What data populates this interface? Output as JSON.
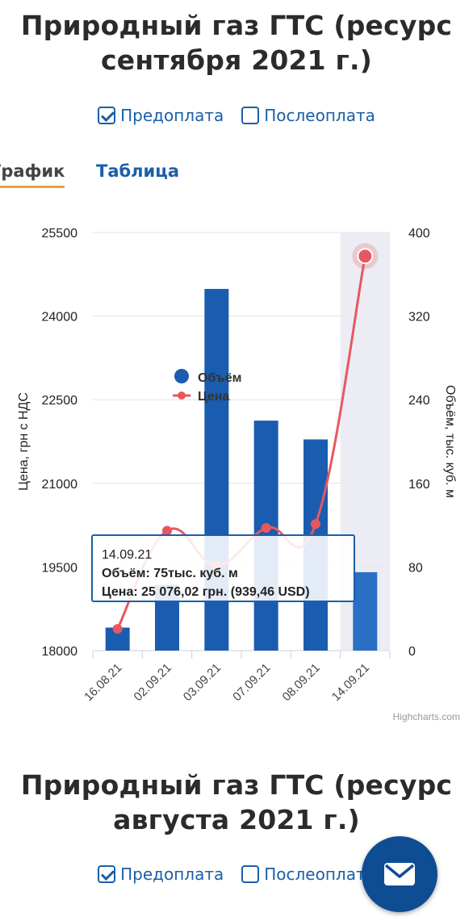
{
  "section1": {
    "title_line1": "Природный газ ГТС (ресурс",
    "title_line2": "сентября 2021 г.)",
    "prepay_label": "Предоплата",
    "postpay_label": "Послеоплата",
    "prepay_checked": true,
    "postpay_checked": false
  },
  "tabs": {
    "chart_label": "График",
    "table_label": "Таблица"
  },
  "tooltip": {
    "date": "14.09.21",
    "volume_label": "Объём: 75тыс. куб. м",
    "price_label": "Цена: 25 076,02 грн. (939,46 USD)"
  },
  "credits": "Highcharts.com",
  "section2": {
    "title_line1": "Природный газ ГТС (ресурс",
    "title_line2": "августа 2021 г.)",
    "prepay_label": "Предоплата",
    "postpay_label": "Послеоплата",
    "prepay_checked": true,
    "postpay_checked": false
  },
  "fab_icon": "mail-icon",
  "colors": {
    "accent": "#1b5fa8",
    "bar": "#1a5cb0",
    "line": "#e8575f",
    "tab_underline": "#e8a33c",
    "fab": "#0f4d93"
  },
  "chart_data": {
    "type": "bar",
    "categories": [
      "16.08.21",
      "02.09.21",
      "03.09.21",
      "07.09.21",
      "08.09.21",
      "14.09.21"
    ],
    "series": [
      {
        "name": "Объём",
        "type": "bar",
        "axis": "right",
        "values": [
          22,
          63,
          346,
          220,
          202,
          75
        ]
      },
      {
        "name": "Цена",
        "type": "line",
        "axis": "left",
        "values": [
          18390,
          20150,
          19530,
          20200,
          20270,
          25076.02
        ]
      }
    ],
    "ylabel_left": "Цена, грн с НДС",
    "ylabel_right": "Объём, тыс. куб. м",
    "yticks_left": [
      "25500",
      "24000",
      "22500",
      "21000",
      "19500",
      "18000"
    ],
    "yticks_right": [
      "400",
      "320",
      "240",
      "160",
      "80",
      "0"
    ],
    "ylim_left": [
      18000,
      25500
    ],
    "ylim_right": [
      0,
      400
    ],
    "highlighted_category": "14.09.21",
    "legend_placement": "center"
  }
}
